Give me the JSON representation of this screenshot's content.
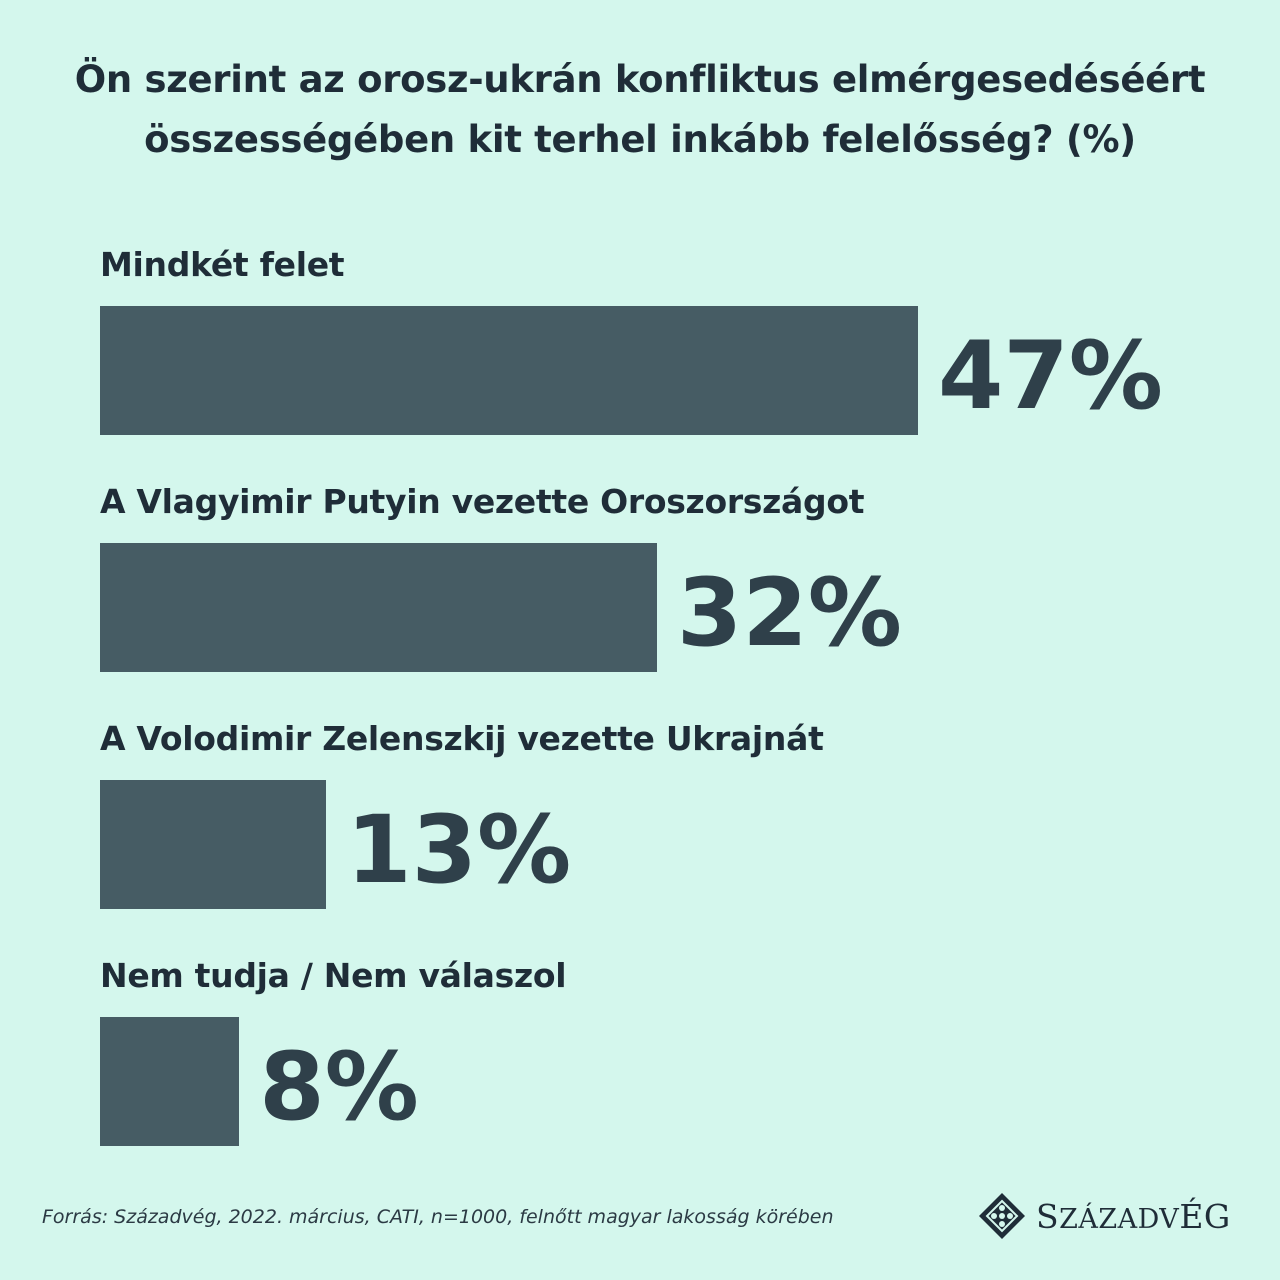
{
  "title": {
    "line1": "Ön szerint az orosz-ukrán konfliktus elmérgesedéséért",
    "line2": "összességében kit terhel inkább felelősség? (%)"
  },
  "chart_data": {
    "type": "bar",
    "orientation": "horizontal",
    "title": "Ön szerint az orosz-ukrán konfliktus elmérgesedéséért összességében kit terhel inkább felelősség? (%)",
    "categories": [
      "Mindkét felet",
      "A Vlagyimir Putyin vezette Oroszországot",
      "A Volodimir Zelenszkij vezette Ukrajnát",
      "Nem tudja / Nem válaszol"
    ],
    "values": [
      47,
      32,
      13,
      8
    ],
    "value_labels": [
      "47%",
      "32%",
      "13%",
      "8%"
    ],
    "xlim": [
      0,
      100
    ],
    "bar_color": "#465c64",
    "grid": false
  },
  "source": "Forrás: Századvég, 2022. március, CATI, n=1000, felnőtt magyar lakosság körében",
  "logo": {
    "text": "SZÁZADVÉG",
    "icon": "szazadveg-diamond-logo-icon"
  }
}
